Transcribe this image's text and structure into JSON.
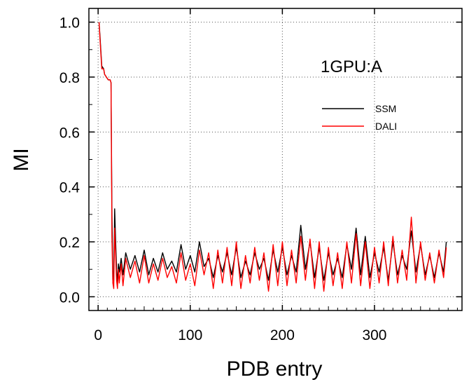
{
  "chart_data": {
    "type": "line",
    "annotation": "1GPU:A",
    "xlabel": "PDB entry",
    "ylabel": "MI",
    "xlim": [
      -10,
      395
    ],
    "ylim": [
      -0.05,
      1.05
    ],
    "xticks": [
      0,
      100,
      200,
      300
    ],
    "yticks": [
      0.0,
      0.2,
      0.4,
      0.6,
      0.8,
      1.0
    ],
    "xtick_labels": [
      "0",
      "100",
      "200",
      "300"
    ],
    "ytick_labels": [
      "0.0",
      "0.2",
      "0.4",
      "0.6",
      "0.8",
      "1.0"
    ],
    "grid": true,
    "legend_position": "right",
    "series": [
      {
        "name": "SSM",
        "color": "#000000",
        "x": [
          1,
          2,
          4,
          6,
          7,
          9,
          11,
          13,
          14,
          15,
          16,
          17,
          18,
          19,
          20,
          21,
          22,
          23,
          25,
          27,
          30,
          35,
          40,
          45,
          50,
          55,
          60,
          65,
          70,
          75,
          80,
          85,
          90,
          95,
          100,
          105,
          110,
          115,
          120,
          125,
          130,
          135,
          140,
          145,
          150,
          155,
          160,
          165,
          170,
          175,
          180,
          185,
          190,
          195,
          200,
          205,
          210,
          215,
          220,
          225,
          230,
          235,
          240,
          245,
          250,
          255,
          260,
          265,
          270,
          275,
          280,
          285,
          290,
          295,
          300,
          305,
          310,
          315,
          320,
          325,
          330,
          335,
          340,
          345,
          350,
          355,
          360,
          365,
          370,
          375,
          378
        ],
        "y": [
          1.0,
          0.95,
          0.84,
          0.83,
          0.81,
          0.8,
          0.79,
          0.79,
          0.78,
          0.3,
          0.08,
          0.06,
          0.32,
          0.2,
          0.1,
          0.05,
          0.12,
          0.09,
          0.14,
          0.08,
          0.16,
          0.1,
          0.15,
          0.09,
          0.17,
          0.08,
          0.14,
          0.09,
          0.16,
          0.1,
          0.13,
          0.09,
          0.19,
          0.1,
          0.15,
          0.09,
          0.2,
          0.11,
          0.14,
          0.07,
          0.15,
          0.09,
          0.16,
          0.08,
          0.18,
          0.07,
          0.13,
          0.08,
          0.16,
          0.1,
          0.14,
          0.06,
          0.17,
          0.09,
          0.18,
          0.08,
          0.15,
          0.09,
          0.26,
          0.1,
          0.2,
          0.07,
          0.18,
          0.06,
          0.16,
          0.08,
          0.14,
          0.07,
          0.19,
          0.1,
          0.25,
          0.08,
          0.22,
          0.07,
          0.16,
          0.09,
          0.18,
          0.06,
          0.2,
          0.08,
          0.15,
          0.1,
          0.24,
          0.09,
          0.19,
          0.08,
          0.15,
          0.07,
          0.16,
          0.09,
          0.2
        ]
      },
      {
        "name": "DALI",
        "color": "#ff0000",
        "x": [
          1,
          2,
          4,
          6,
          7,
          9,
          11,
          13,
          14,
          15,
          16,
          17,
          18,
          19,
          20,
          21,
          22,
          23,
          25,
          27,
          30,
          35,
          40,
          45,
          50,
          55,
          60,
          65,
          70,
          75,
          80,
          85,
          90,
          95,
          100,
          105,
          110,
          115,
          120,
          125,
          130,
          135,
          140,
          145,
          150,
          155,
          160,
          165,
          170,
          175,
          180,
          185,
          190,
          195,
          200,
          205,
          210,
          215,
          220,
          225,
          230,
          235,
          240,
          245,
          250,
          255,
          260,
          265,
          270,
          275,
          280,
          285,
          290,
          295,
          300,
          305,
          310,
          315,
          320,
          325,
          330,
          335,
          340,
          345,
          350,
          355,
          360,
          365,
          370,
          375,
          378
        ],
        "y": [
          1.0,
          0.94,
          0.83,
          0.83,
          0.81,
          0.8,
          0.79,
          0.79,
          0.78,
          0.22,
          0.05,
          0.03,
          0.25,
          0.15,
          0.06,
          0.03,
          0.1,
          0.05,
          0.12,
          0.04,
          0.14,
          0.07,
          0.13,
          0.05,
          0.15,
          0.05,
          0.12,
          0.06,
          0.14,
          0.07,
          0.11,
          0.05,
          0.16,
          0.06,
          0.12,
          0.04,
          0.17,
          0.08,
          0.16,
          0.03,
          0.17,
          0.05,
          0.18,
          0.04,
          0.2,
          0.03,
          0.15,
          0.05,
          0.18,
          0.06,
          0.16,
          0.02,
          0.19,
          0.04,
          0.2,
          0.04,
          0.17,
          0.05,
          0.22,
          0.06,
          0.21,
          0.03,
          0.2,
          0.02,
          0.18,
          0.04,
          0.16,
          0.03,
          0.2,
          0.05,
          0.23,
          0.04,
          0.2,
          0.03,
          0.18,
          0.05,
          0.2,
          0.04,
          0.22,
          0.05,
          0.17,
          0.06,
          0.29,
          0.05,
          0.2,
          0.06,
          0.16,
          0.05,
          0.17,
          0.07,
          0.18
        ]
      }
    ]
  }
}
